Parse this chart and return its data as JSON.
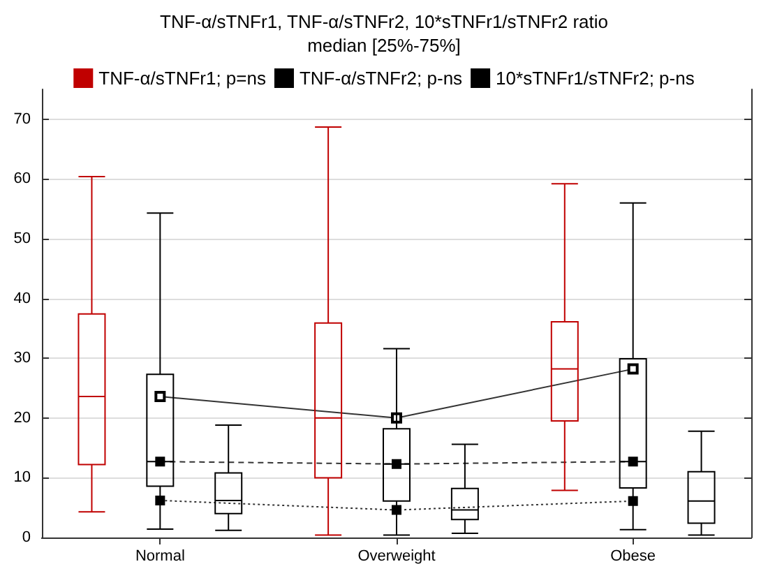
{
  "chart_data": {
    "type": "box",
    "title": "TNF-α/sTNFr1, TNF-α/sTNFr2, 10*sTNFr1/sTNFr2 ratio",
    "subtitle": "median [25%-75%]",
    "categories": [
      "Normal",
      "Overweight",
      "Obese"
    ],
    "series": [
      {
        "name": "TNF-α/sTNFr1; p=ns",
        "color": "#c00000",
        "line_style": "solid",
        "boxes": [
          {
            "low": 4.3,
            "q1": 12.2,
            "median": 23.6,
            "q3": 37.4,
            "high": 60.4
          },
          {
            "low": 0.4,
            "q1": 10.0,
            "median": 20.0,
            "q3": 35.9,
            "high": 68.7
          },
          {
            "low": 7.9,
            "q1": 19.5,
            "median": 28.2,
            "q3": 36.1,
            "high": 59.2
          }
        ]
      },
      {
        "name": "TNF-α/sTNFr2; p-ns",
        "color": "#000000",
        "line_style": "dashed",
        "boxes": [
          {
            "low": 1.4,
            "q1": 8.6,
            "median": 12.7,
            "q3": 27.3,
            "high": 54.3
          },
          {
            "low": 0.4,
            "q1": 6.1,
            "median": 12.3,
            "q3": 18.2,
            "high": 31.6
          },
          {
            "low": 1.3,
            "q1": 8.3,
            "median": 12.7,
            "q3": 29.9,
            "high": 56.0
          }
        ]
      },
      {
        "name": "10*sTNFr1/sTNFr2; p-ns",
        "color": "#000000",
        "line_style": "dotted",
        "boxes": [
          {
            "low": 1.2,
            "q1": 4.0,
            "median": 6.2,
            "q3": 10.8,
            "high": 18.8
          },
          {
            "low": 0.7,
            "q1": 3.0,
            "median": 4.6,
            "q3": 8.2,
            "high": 15.6
          },
          {
            "low": 0.4,
            "q1": 2.4,
            "median": 6.1,
            "q3": 11.0,
            "high": 17.8
          }
        ]
      },
      {
        "type": "line",
        "color": "#333333",
        "line_style": "solid",
        "marker": "square",
        "values": [
          23.6,
          20.0,
          28.2
        ]
      },
      {
        "type": "line",
        "color": "#333333",
        "line_style": "dashed",
        "marker": "square",
        "values": [
          12.7,
          12.3,
          12.7
        ]
      },
      {
        "type": "line",
        "color": "#333333",
        "line_style": "dotted",
        "marker": "square",
        "values": [
          6.2,
          4.6,
          6.1
        ]
      }
    ],
    "ylim": [
      0,
      75
    ],
    "yticks": [
      0,
      10,
      20,
      30,
      40,
      50,
      60,
      70
    ],
    "grid": "y",
    "legend": "top"
  }
}
